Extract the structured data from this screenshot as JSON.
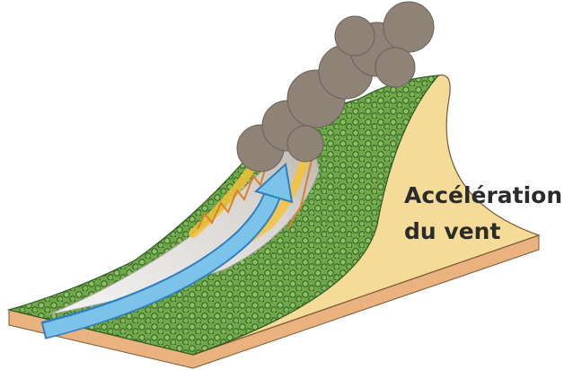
{
  "label": {
    "lines": [
      "Accélération",
      "du vent"
    ]
  }
}
